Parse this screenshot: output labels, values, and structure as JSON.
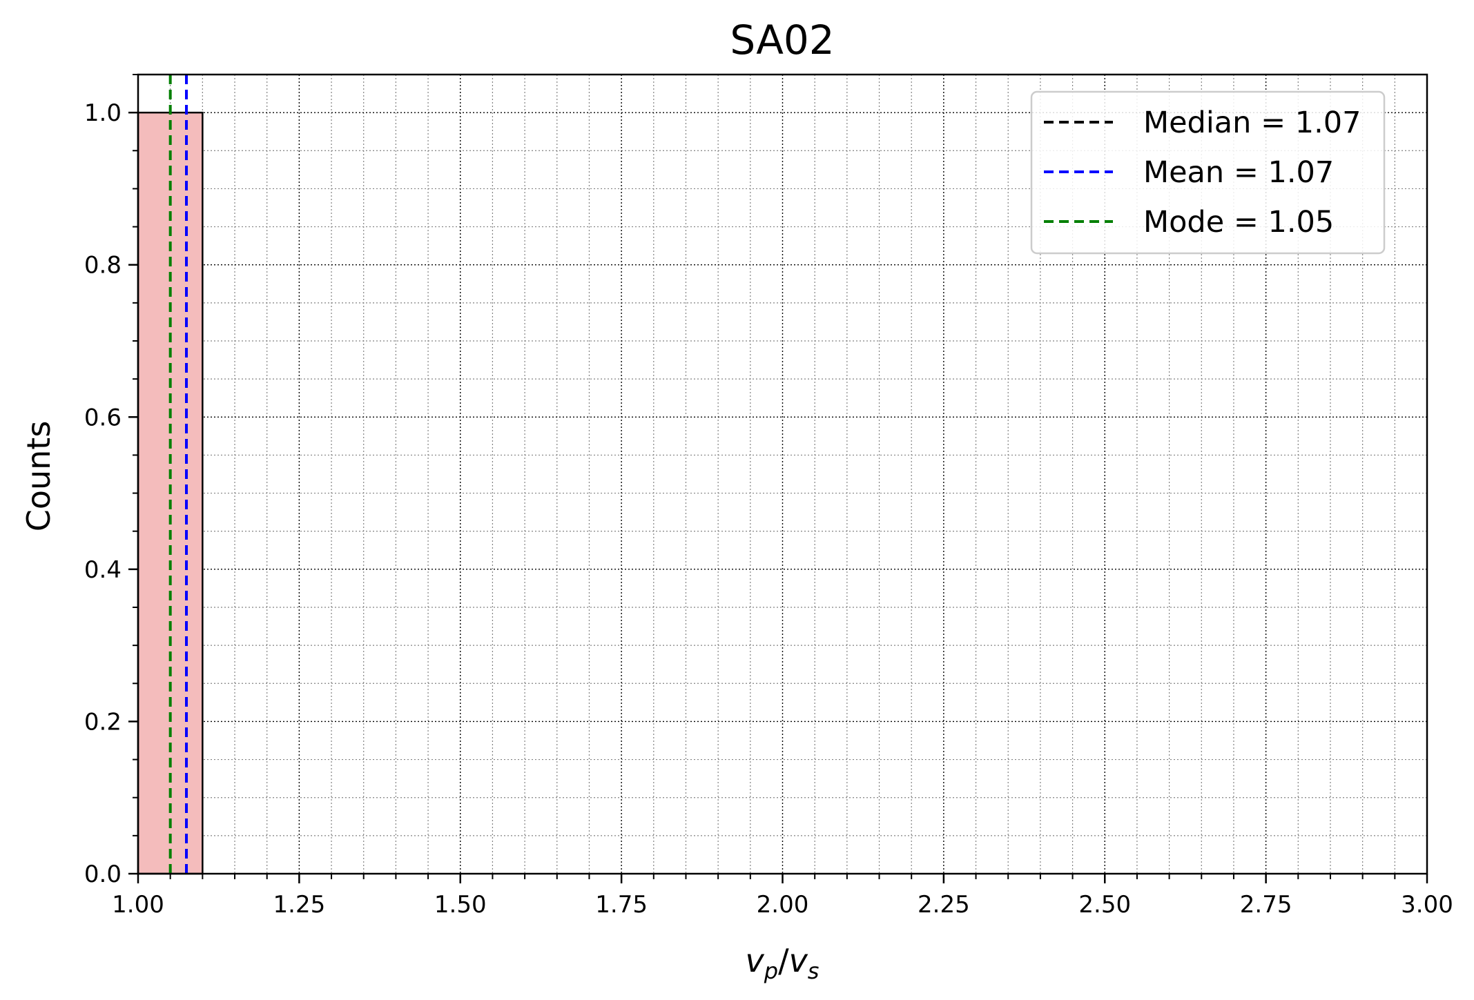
{
  "chart_data": {
    "type": "bar",
    "title": "SA02",
    "xlabel": {
      "base": "v",
      "sub1": "p",
      "slash": "/",
      "base2": "v",
      "sub2": "s"
    },
    "ylabel": "Counts",
    "xlim": [
      1.0,
      3.0
    ],
    "ylim": [
      0.0,
      1.05
    ],
    "x_ticks": [
      "1.00",
      "1.25",
      "1.50",
      "1.75",
      "2.00",
      "2.25",
      "2.50",
      "2.75",
      "3.00"
    ],
    "y_ticks": [
      "0.0",
      "0.2",
      "0.4",
      "0.6",
      "0.8",
      "1.0"
    ],
    "bins": [
      {
        "x0": 1.0,
        "x1": 1.1,
        "count": 1
      }
    ],
    "bar_color": "#f4bcbc",
    "bar_edge_color": "#000000",
    "grid": true,
    "legend_position": "top-right",
    "vlines": [
      {
        "label": "Median = 1.07",
        "x": 1.075,
        "color": "#000000"
      },
      {
        "label": "Mean = 1.07",
        "x": 1.075,
        "color": "#0000ff"
      },
      {
        "label": "Mode = 1.05",
        "x": 1.05,
        "color": "#007f00"
      }
    ]
  }
}
